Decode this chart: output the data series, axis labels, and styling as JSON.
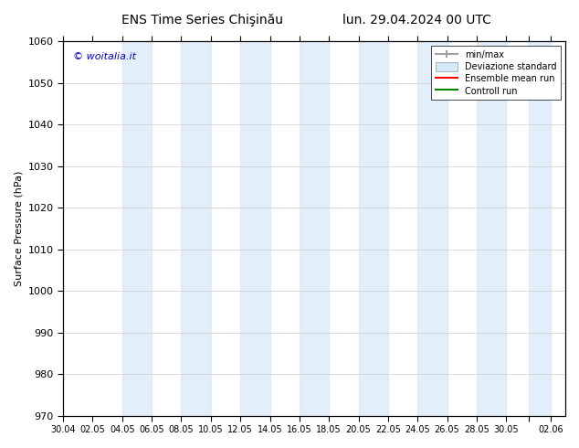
{
  "title_left": "ENS Time Series Chişinău",
  "title_right": "lun. 29.04.2024 00 UTC",
  "ylabel": "Surface Pressure (hPa)",
  "ymin": 970,
  "ymax": 1060,
  "yticks": [
    970,
    980,
    990,
    1000,
    1010,
    1020,
    1030,
    1040,
    1050,
    1060
  ],
  "xtick_labels": [
    "30.04",
    "02.05",
    "04.05",
    "06.05",
    "08.05",
    "10.05",
    "12.05",
    "14.05",
    "16.05",
    "18.05",
    "20.05",
    "22.05",
    "24.05",
    "26.05",
    "28.05",
    "30.05",
    "",
    "02.06"
  ],
  "background_color": "#ffffff",
  "band_color": "#d6e8f7",
  "band_alpha": 0.7,
  "watermark": "© woitalia.it",
  "legend_items": [
    "min/max",
    "Deviazione standard",
    "Ensemble mean run",
    "Controll run"
  ],
  "legend_colors": [
    "#a0a0a0",
    "#b0c8d8",
    "#ff0000",
    "#008000"
  ],
  "figsize": [
    6.34,
    4.9
  ],
  "dpi": 100
}
